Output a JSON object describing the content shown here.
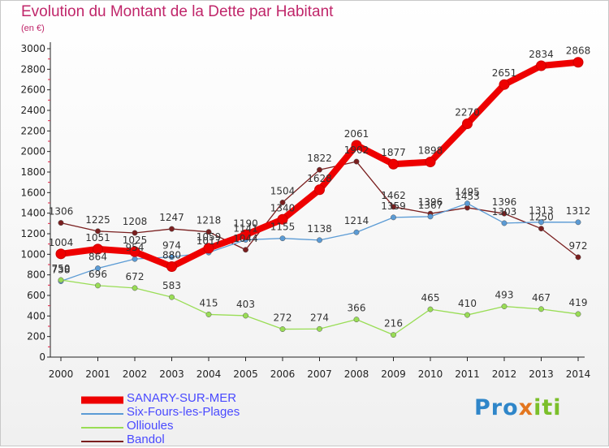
{
  "title": "Evolution du Montant de la Dette par Habitant",
  "subtitle": "(en €)",
  "logo": {
    "part1": "Pro",
    "part2": "x",
    "part3": "iti"
  },
  "chart_data": {
    "type": "line",
    "x": [
      "2000",
      "2001",
      "2002",
      "2003",
      "2004",
      "2005",
      "2006",
      "2007",
      "2008",
      "2009",
      "2010",
      "2011",
      "2012",
      "2013",
      "2014"
    ],
    "yticks": [
      0,
      200,
      400,
      600,
      800,
      1000,
      1200,
      1400,
      1600,
      1800,
      2000,
      2200,
      2400,
      2600,
      2800,
      3000
    ],
    "ylim": [
      0,
      3000
    ],
    "grid": false,
    "legend_position": "bottom-left",
    "series": [
      {
        "name": "SANARY-SUR-MER",
        "color": "#ee0000",
        "values": [
          1004,
          1051,
          1025,
          880,
          1059,
          1190,
          1340,
          1628,
          2061,
          1877,
          1898,
          2270,
          2651,
          2834,
          2868
        ],
        "labels": [
          "1004",
          "1051",
          "1025",
          "880",
          "1059",
          "1190",
          "1340",
          "1628",
          "2061",
          "1877",
          "1898",
          "2270",
          "2651",
          "2834",
          "2868"
        ]
      },
      {
        "name": "Six-Fours-les-Plages",
        "color": "#5b9bd5",
        "values": [
          738,
          864,
          954,
          974,
          1017,
          1141,
          1155,
          1138,
          1214,
          1359,
          1367,
          1495,
          1303,
          1313,
          1312
        ],
        "labels": [
          "738",
          "864",
          "954",
          "974",
          "1017",
          "1141",
          "1155",
          "1138",
          "1214",
          "1359",
          "1367",
          "1495",
          "1303",
          "1313",
          "1312"
        ]
      },
      {
        "name": "Ollioules",
        "color": "#99dd55",
        "values": [
          750,
          696,
          672,
          583,
          415,
          403,
          272,
          274,
          366,
          216,
          465,
          410,
          493,
          467,
          419
        ],
        "labels": [
          "750",
          "696",
          "672",
          "583",
          "415",
          "403",
          "272",
          "274",
          "366",
          "216",
          "465",
          "410",
          "493",
          "467",
          "419"
        ]
      },
      {
        "name": "Bandol",
        "color": "#7a1f1f",
        "values": [
          1306,
          1225,
          1208,
          1247,
          1218,
          1044,
          1504,
          1822,
          1902,
          1462,
          1396,
          1453,
          1396,
          1250,
          972
        ],
        "labels": [
          "1306",
          "1225",
          "1208",
          "1247",
          "1218",
          "1044",
          "1504",
          "1822",
          "1902",
          "1462",
          "1396",
          "1453",
          "1396",
          "1250",
          "972"
        ]
      }
    ]
  }
}
